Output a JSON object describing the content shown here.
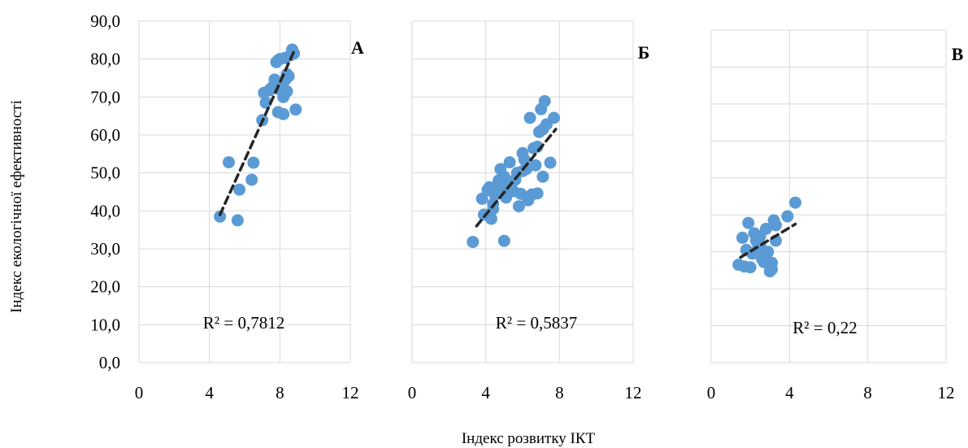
{
  "chart_data": {
    "type": "scatter",
    "xlabel": "Індекс розвитку ІКТ",
    "ylabel": "Індекс екологічної ефективності",
    "ylim": [
      0,
      90
    ],
    "yticks": [
      "0,0",
      "10,0",
      "20,0",
      "30,0",
      "40,0",
      "50,0",
      "60,0",
      "70,0",
      "80,0",
      "90,0"
    ],
    "xlim": [
      0,
      12
    ],
    "xticks": [
      "0",
      "4",
      "8",
      "12"
    ],
    "grid": true,
    "legend": "none",
    "point_color": "#5b9bd5",
    "trend_color": "#262626",
    "panels": [
      {
        "label": "А",
        "r2_text": "R² = 0,7812",
        "trend": {
          "x": [
            4.6,
            8.8
          ],
          "y": [
            39.0,
            82.0
          ]
        },
        "points": [
          [
            4.6,
            38.5
          ],
          [
            5.6,
            37.5
          ],
          [
            5.1,
            52.8
          ],
          [
            5.7,
            45.6
          ],
          [
            6.4,
            48.2
          ],
          [
            6.5,
            52.7
          ],
          [
            7.0,
            63.9
          ],
          [
            7.1,
            71.1
          ],
          [
            7.2,
            68.5
          ],
          [
            7.4,
            71.8
          ],
          [
            7.5,
            72.3
          ],
          [
            7.7,
            74.6
          ],
          [
            7.8,
            79.2
          ],
          [
            7.9,
            79.7
          ],
          [
            8.0,
            80.0
          ],
          [
            8.1,
            72.8
          ],
          [
            8.2,
            70.0
          ],
          [
            8.3,
            80.3
          ],
          [
            8.4,
            71.5
          ],
          [
            8.5,
            75.5
          ],
          [
            8.6,
            81.0
          ],
          [
            8.7,
            82.5
          ],
          [
            8.8,
            81.5
          ],
          [
            7.9,
            66.0
          ],
          [
            8.2,
            65.5
          ],
          [
            8.9,
            66.7
          ],
          [
            7.7,
            73.0
          ],
          [
            8.3,
            74.5
          ],
          [
            8.0,
            72.0
          ],
          [
            8.4,
            76.0
          ]
        ]
      },
      {
        "label": "Б",
        "r2_text": "R² = 0,5837",
        "trend": {
          "x": [
            3.5,
            7.8
          ],
          "y": [
            36.0,
            61.5
          ]
        },
        "points": [
          [
            3.3,
            31.8
          ],
          [
            3.8,
            43.2
          ],
          [
            3.9,
            39.0
          ],
          [
            4.1,
            45.5
          ],
          [
            4.2,
            46.2
          ],
          [
            4.3,
            37.9
          ],
          [
            4.4,
            41.8
          ],
          [
            4.5,
            44.2
          ],
          [
            4.6,
            46.5
          ],
          [
            4.7,
            48.0
          ],
          [
            4.8,
            51.0
          ],
          [
            4.9,
            45.5
          ],
          [
            5.0,
            49.0
          ],
          [
            5.0,
            32.1
          ],
          [
            5.1,
            43.5
          ],
          [
            5.2,
            47.0
          ],
          [
            5.3,
            52.8
          ],
          [
            5.5,
            45.2
          ],
          [
            5.7,
            50.0
          ],
          [
            5.8,
            41.2
          ],
          [
            5.9,
            44.5
          ],
          [
            6.0,
            55.2
          ],
          [
            6.1,
            53.5
          ],
          [
            6.2,
            51.0
          ],
          [
            6.3,
            42.8
          ],
          [
            6.4,
            64.5
          ],
          [
            6.5,
            44.3
          ],
          [
            6.6,
            56.5
          ],
          [
            6.7,
            52.0
          ],
          [
            6.8,
            44.6
          ],
          [
            6.9,
            60.8
          ],
          [
            7.0,
            66.8
          ],
          [
            7.1,
            61.5
          ],
          [
            7.2,
            68.9
          ],
          [
            7.3,
            62.8
          ],
          [
            7.1,
            49.0
          ],
          [
            7.5,
            52.7
          ],
          [
            7.7,
            64.5
          ],
          [
            6.8,
            56.9
          ],
          [
            6.0,
            50.5
          ],
          [
            4.4,
            40.5
          ],
          [
            5.6,
            48.2
          ]
        ]
      },
      {
        "label": "В",
        "r2_text": "R² = 0,22",
        "trend": {
          "x": [
            1.5,
            4.3
          ],
          "y": [
            28.5,
            37.5
          ]
        },
        "points": [
          [
            1.4,
            26.5
          ],
          [
            1.6,
            33.8
          ],
          [
            1.7,
            26.0
          ],
          [
            1.8,
            30.5
          ],
          [
            1.9,
            37.8
          ],
          [
            2.0,
            25.8
          ],
          [
            2.1,
            29.5
          ],
          [
            2.2,
            35.0
          ],
          [
            2.3,
            33.0
          ],
          [
            2.4,
            31.0
          ],
          [
            2.5,
            34.2
          ],
          [
            2.6,
            28.0
          ],
          [
            2.7,
            27.2
          ],
          [
            2.8,
            36.2
          ],
          [
            2.9,
            30.0
          ],
          [
            3.0,
            24.7
          ],
          [
            3.1,
            27.0
          ],
          [
            3.1,
            25.3
          ],
          [
            3.2,
            38.5
          ],
          [
            3.3,
            33.0
          ],
          [
            3.3,
            37.2
          ],
          [
            3.9,
            39.6
          ],
          [
            4.3,
            43.3
          ],
          [
            2.5,
            32.0
          ]
        ]
      }
    ]
  }
}
